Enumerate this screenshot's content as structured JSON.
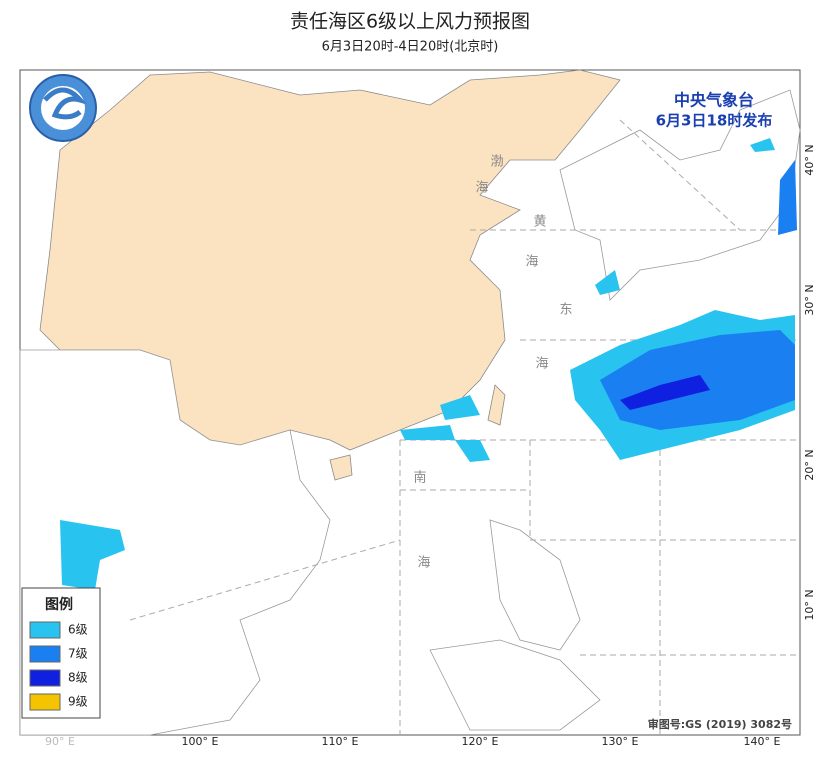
{
  "header": {
    "title": "责任海区6级以上风力预报图",
    "subtitle": "6月3日20时-4日20时(北京时)"
  },
  "issuer": {
    "name": "中央气象台",
    "time": "6月3日18时发布"
  },
  "legend": {
    "title": "图例",
    "items": [
      {
        "label": "6级",
        "color": "#29c3f0"
      },
      {
        "label": "7级",
        "color": "#1a7ff0"
      },
      {
        "label": "8级",
        "color": "#1020e0"
      },
      {
        "label": "9级",
        "color": "#f5c400"
      }
    ]
  },
  "lon_labels": [
    "90° E",
    "100° E",
    "110° E",
    "120° E",
    "130° E",
    "140° E"
  ],
  "lat_labels": [
    "40° N",
    "30° N",
    "20° N",
    "10° N"
  ],
  "sea_labels": [
    "渤",
    "海",
    "黄",
    "海",
    "东",
    "海",
    "南",
    "海"
  ],
  "approval": "审图号:GS (2019) 3082号"
}
